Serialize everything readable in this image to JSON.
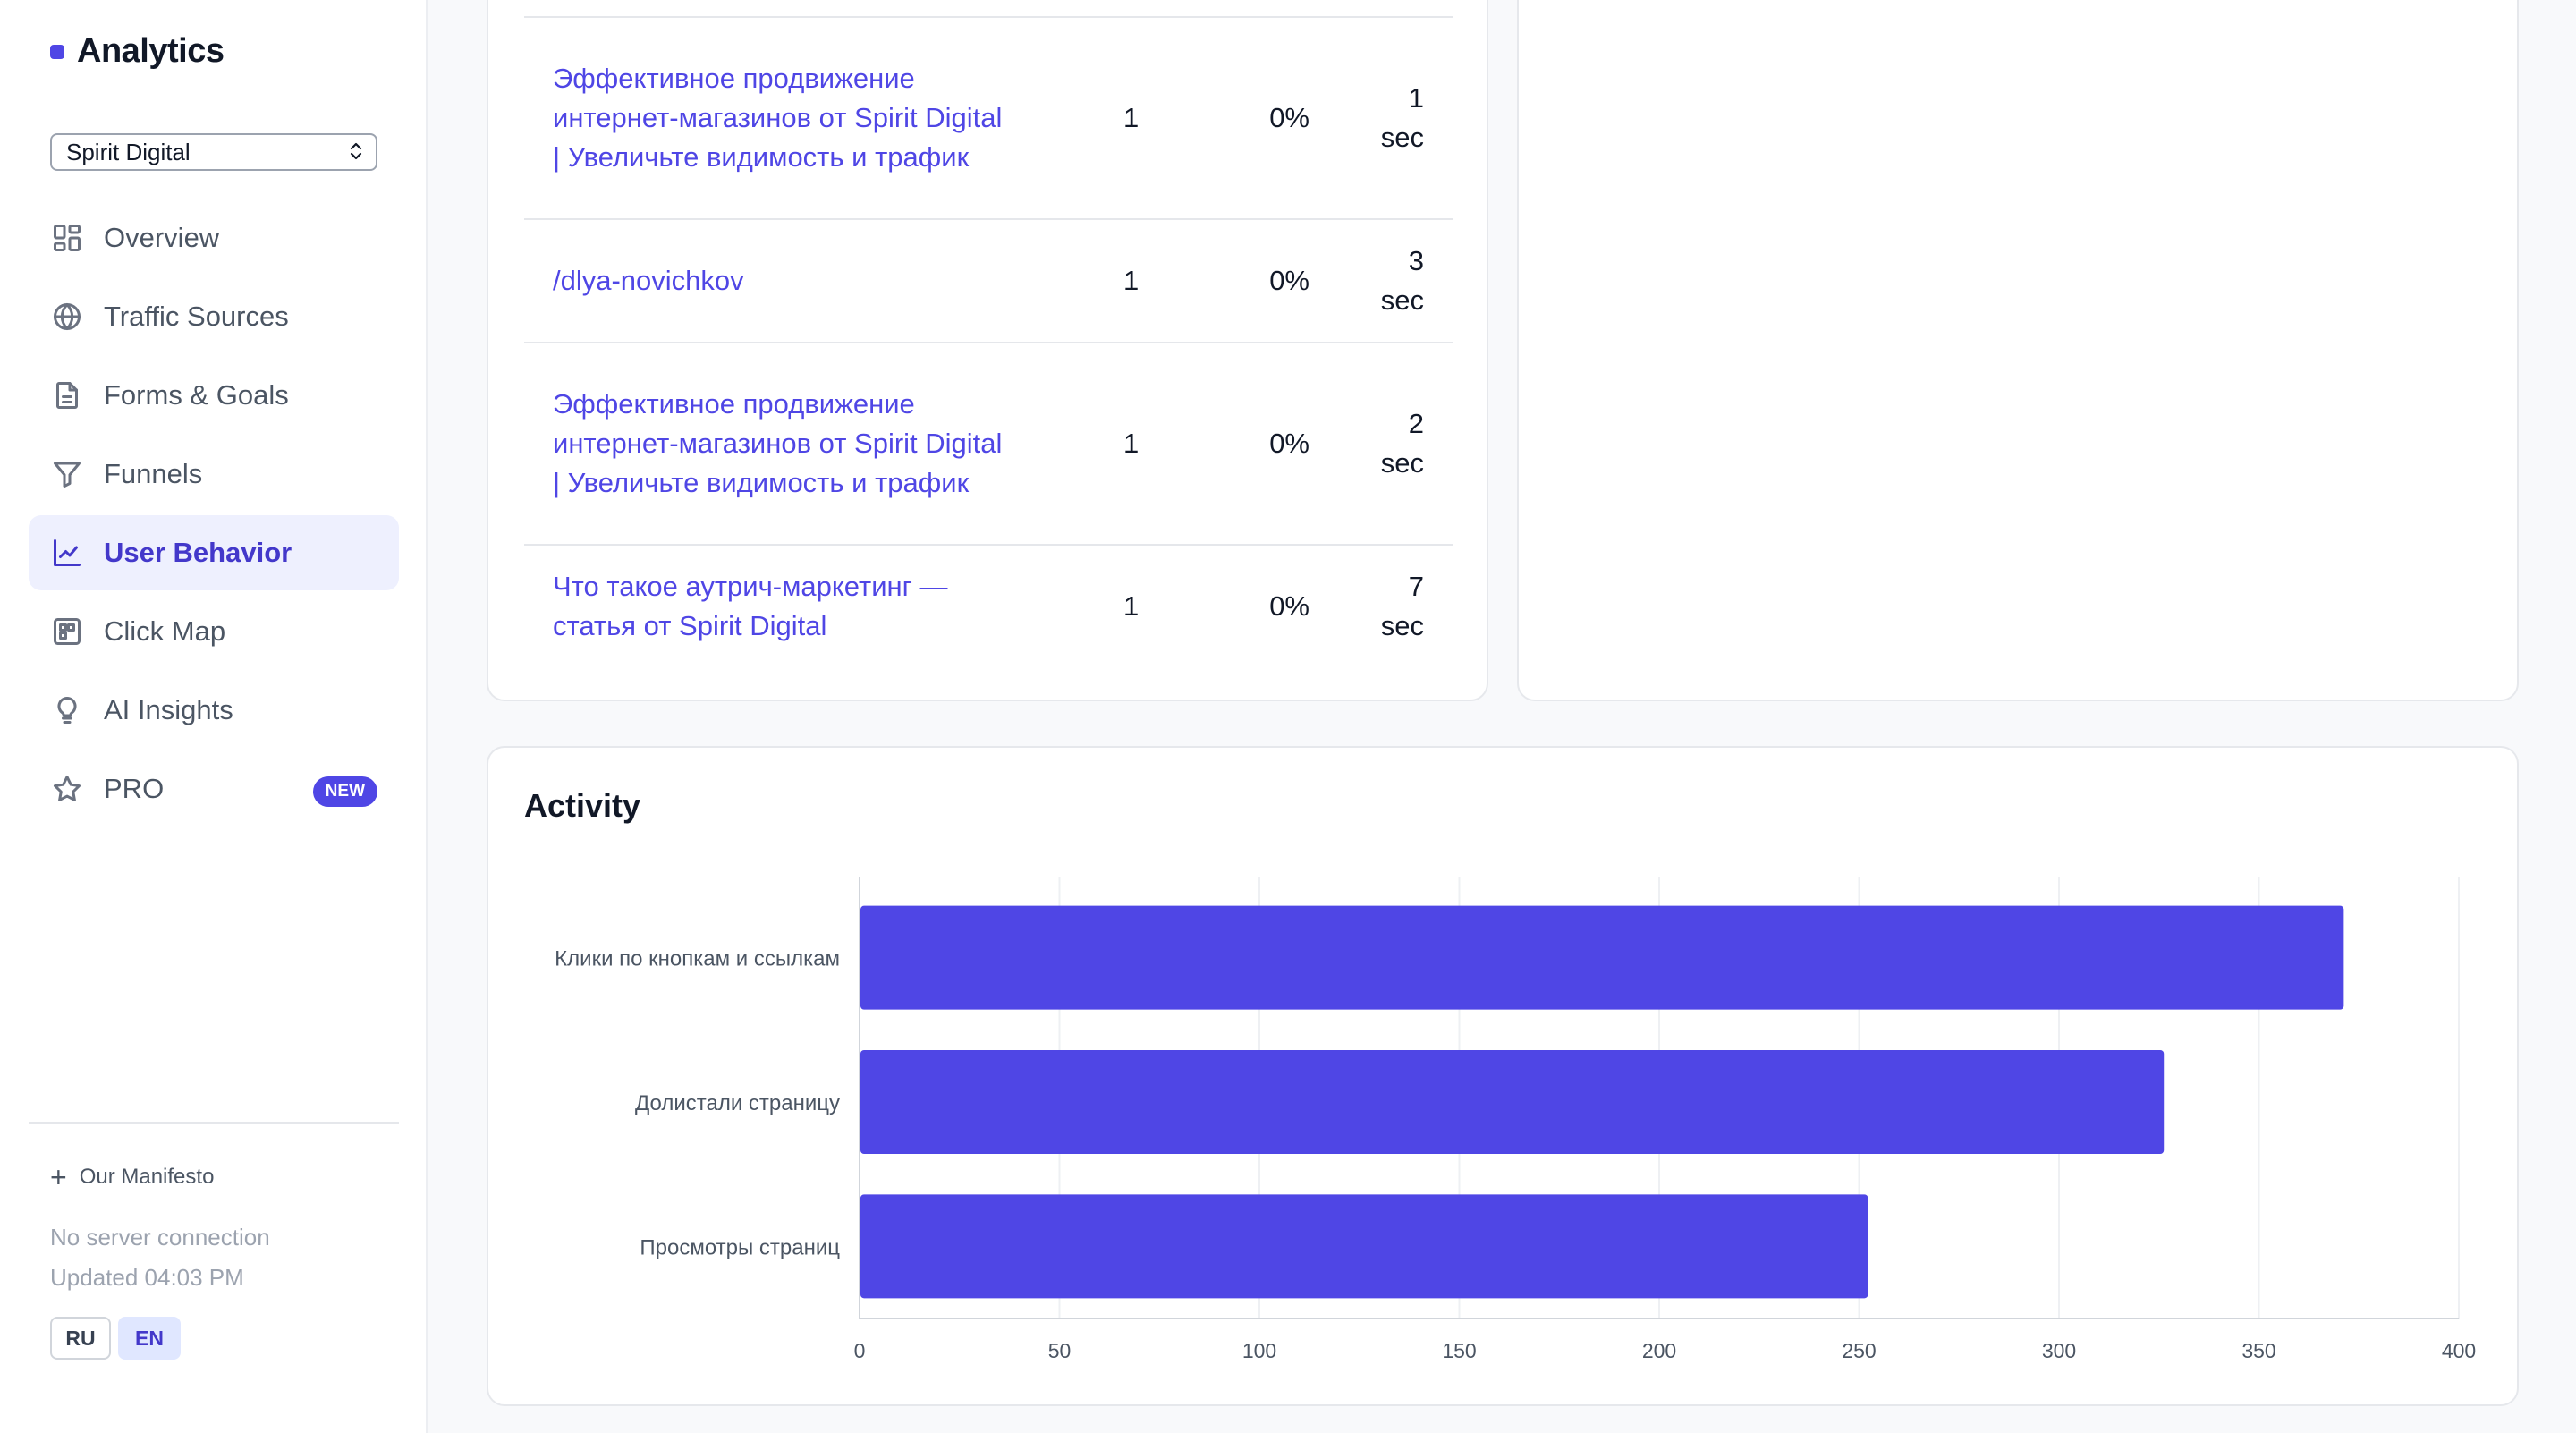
{
  "brand": {
    "name": "Analytics"
  },
  "project_select": {
    "value": "Spirit Digital"
  },
  "nav": [
    {
      "label": "Overview",
      "icon": "grid-icon"
    },
    {
      "label": "Traffic Sources",
      "icon": "globe-icon"
    },
    {
      "label": "Forms & Goals",
      "icon": "document-icon"
    },
    {
      "label": "Funnels",
      "icon": "funnel-icon"
    },
    {
      "label": "User Behavior",
      "icon": "line-chart-icon",
      "active": true
    },
    {
      "label": "Click Map",
      "icon": "click-map-icon"
    },
    {
      "label": "AI Insights",
      "icon": "lightbulb-icon"
    },
    {
      "label": "PRO",
      "icon": "star-icon",
      "badge": "NEW"
    }
  ],
  "footer": {
    "manifesto": "Our Manifesto",
    "connection": "No server connection",
    "updated": "Updated 04:03 PM",
    "languages": [
      "RU",
      "EN"
    ],
    "active_language": "EN"
  },
  "pages_table": {
    "rows": [
      {
        "page": "Эффективное продвижение интернет-магазинов от Spirit Digital | Увеличьте видимость и трафик",
        "visits": "1",
        "bounce": "0%",
        "time_value": "1",
        "time_unit": "sec"
      },
      {
        "page": "/dlya-novichkov",
        "visits": "1",
        "bounce": "0%",
        "time_value": "3",
        "time_unit": "sec"
      },
      {
        "page": "Эффективное продвижение интернет-магазинов от Spirit Digital | Увеличьте видимость и трафик",
        "visits": "1",
        "bounce": "0%",
        "time_value": "2",
        "time_unit": "sec"
      },
      {
        "page": "Что такое аутрич-маркетинг — статья от Spirit Digital",
        "visits": "1",
        "bounce": "0%",
        "time_value": "7",
        "time_unit": "sec"
      }
    ]
  },
  "activity": {
    "title": "Activity"
  },
  "colors": {
    "accent": "#4f46e5",
    "active_bg": "#eef0fe",
    "bar": "#4f46e5"
  },
  "chart_data": {
    "type": "bar",
    "orientation": "horizontal",
    "title": "Activity",
    "categories": [
      "Клики по кнопкам и ссылкам",
      "Долистали страницу",
      "Просмотры страниц"
    ],
    "values": [
      371,
      326,
      252
    ],
    "xlim": [
      0,
      400
    ],
    "xticks": [
      0,
      50,
      100,
      150,
      200,
      250,
      300,
      350,
      400
    ],
    "grid": true
  }
}
